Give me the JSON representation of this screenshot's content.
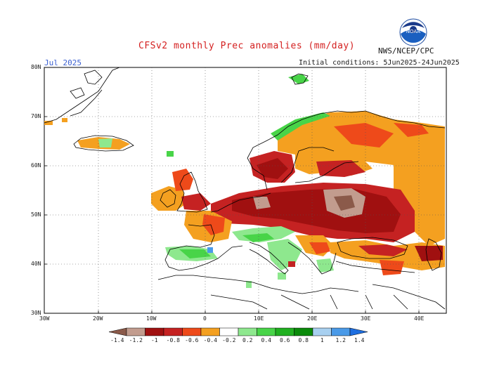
{
  "header": {
    "title": "CFSv2 monthly Prec anomalies (mm/day)",
    "agency": "NWS/NCEP/CPC",
    "month": "Jul 2025",
    "initial_conditions": "Initial conditions: 5Jun2025-24Jun2025"
  },
  "logo": {
    "icon": "noaa-logo-icon",
    "text": "NOAA"
  },
  "axes": {
    "lat_labels": [
      "80N",
      "70N",
      "60N",
      "50N",
      "40N",
      "30N"
    ],
    "lon_labels": [
      "30W",
      "20W",
      "10W",
      "0",
      "10E",
      "20E",
      "30E",
      "40E"
    ]
  },
  "colorbar": {
    "colors": [
      "#8b5a4a",
      "#c29c8e",
      "#a01010",
      "#c52222",
      "#ee4a1a",
      "#f4a020",
      "#ffffff",
      "#8ee88e",
      "#48d448",
      "#20b020",
      "#0a8a0a",
      "#a8d0f0",
      "#4a9ae8",
      "#1e6ee0"
    ],
    "labels": [
      "-1.4",
      "-1.2",
      "-1",
      "-0.8",
      "-0.6",
      "-0.4",
      "-0.2",
      "0.2",
      "0.4",
      "0.6",
      "0.8",
      "1",
      "1.2",
      "1.4"
    ]
  }
}
